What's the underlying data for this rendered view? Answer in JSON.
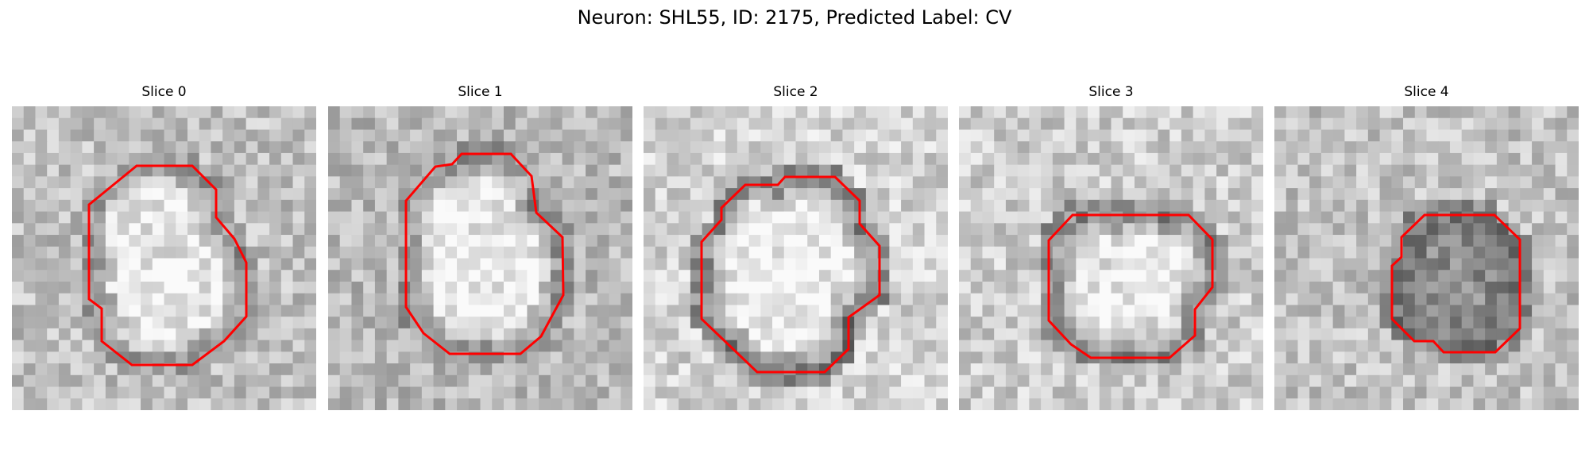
{
  "figure": {
    "title": "Neuron: SHL55, ID: 2175, Predicted Label: CV"
  },
  "panels": [
    {
      "title": "Slice 0",
      "outline_color": "#ff0000",
      "blob": {
        "type": "ring",
        "dark": 0.62,
        "light": 0.9,
        "outside": 0.75
      }
    },
    {
      "title": "Slice 1",
      "outline_color": "#ff0000",
      "blob": {
        "type": "ring",
        "dark": 0.6,
        "light": 0.92,
        "outside": 0.72
      }
    },
    {
      "title": "Slice 2",
      "outline_color": "#ff0000",
      "blob": {
        "type": "ring",
        "dark": 0.55,
        "light": 0.93,
        "outside": 0.82
      }
    },
    {
      "title": "Slice 3",
      "outline_color": "#ff0000",
      "blob": {
        "type": "ring",
        "dark": 0.58,
        "light": 0.9,
        "outside": 0.8
      }
    },
    {
      "title": "Slice 4",
      "outline_color": "#ff0000",
      "blob": {
        "type": "dark",
        "dark": 0.5,
        "light": 0.55,
        "outside": 0.76
      }
    }
  ]
}
